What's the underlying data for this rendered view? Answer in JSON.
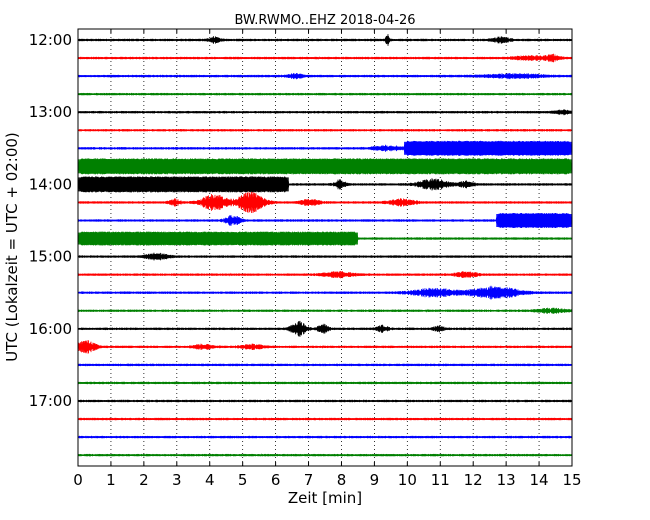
{
  "chart_data": {
    "type": "line",
    "title": "BW.RWMO..EHZ 2018-04-26",
    "xlabel": "Zeit  [min]",
    "ylabel": "UTC (Lokalzeit = UTC + 02:00)",
    "xlim": [
      0,
      15
    ],
    "x_ticks": [
      "0",
      "1",
      "2",
      "3",
      "4",
      "5",
      "6",
      "7",
      "8",
      "9",
      "10",
      "11",
      "12",
      "13",
      "14",
      "15"
    ],
    "y_tick_labels": [
      "12:00",
      "13:00",
      "14:00",
      "15:00",
      "16:00",
      "17:00"
    ],
    "grid": "vertical-dotted",
    "trace_colors": [
      "#000000",
      "#ff0000",
      "#0000ff",
      "#008000"
    ],
    "traces": [
      {
        "start": "12:00",
        "color": "#000000",
        "events": [
          {
            "x": 4.0,
            "w": 0.3,
            "amp": 3
          },
          {
            "x": 9.35,
            "w": 0.1,
            "amp": 5
          },
          {
            "x": 12.6,
            "w": 0.5,
            "amp": 2.5
          }
        ]
      },
      {
        "start": "12:15",
        "color": "#ff0000",
        "events": [
          {
            "x": 13.3,
            "w": 0.8,
            "amp": 2
          },
          {
            "x": 14.2,
            "w": 0.4,
            "amp": 3
          }
        ]
      },
      {
        "start": "12:30",
        "color": "#0000ff",
        "events": [
          {
            "x": 6.4,
            "w": 0.4,
            "amp": 2
          },
          {
            "x": 12.5,
            "w": 1.5,
            "amp": 2
          }
        ]
      },
      {
        "start": "12:45",
        "color": "#008000",
        "events": []
      },
      {
        "start": "13:00",
        "color": "#000000",
        "events": [
          {
            "x": 14.5,
            "w": 0.4,
            "amp": 2
          }
        ]
      },
      {
        "start": "13:15",
        "color": "#ff0000",
        "events": []
      },
      {
        "start": "13:30",
        "color": "#0000ff",
        "events": [
          {
            "x": 9.0,
            "w": 0.8,
            "amp": 2.5
          },
          {
            "x": 9.9,
            "x2": 15,
            "fill": 15
          }
        ]
      },
      {
        "start": "13:45",
        "color": "#008000",
        "events": [
          {
            "x": 0,
            "x2": 15,
            "fill": 16
          }
        ]
      },
      {
        "start": "14:00",
        "color": "#000000",
        "events": [
          {
            "x": 0,
            "x2": 6.4,
            "fill": 16
          },
          {
            "x": 7.8,
            "w": 0.3,
            "amp": 4
          },
          {
            "x": 10.4,
            "w": 0.8,
            "amp": 5
          },
          {
            "x": 11.6,
            "w": 0.4,
            "amp": 3
          }
        ]
      },
      {
        "start": "14:15",
        "color": "#ff0000",
        "events": [
          {
            "x": 2.8,
            "w": 0.3,
            "amp": 3
          },
          {
            "x": 3.8,
            "w": 0.7,
            "amp": 8
          },
          {
            "x": 4.9,
            "w": 0.7,
            "amp": 10
          },
          {
            "x": 6.8,
            "w": 0.5,
            "amp": 3
          },
          {
            "x": 9.5,
            "w": 0.7,
            "amp": 3
          }
        ]
      },
      {
        "start": "14:30",
        "color": "#0000ff",
        "events": [
          {
            "x": 4.5,
            "w": 0.4,
            "amp": 5
          },
          {
            "x": 12.7,
            "x2": 15,
            "fill": 15
          }
        ]
      },
      {
        "start": "14:45",
        "color": "#008000",
        "events": [
          {
            "x": 0,
            "x2": 8.5,
            "fill": 14
          }
        ]
      },
      {
        "start": "15:00",
        "color": "#000000",
        "events": [
          {
            "x": 2.1,
            "w": 0.6,
            "amp": 3
          }
        ]
      },
      {
        "start": "15:15",
        "color": "#ff0000",
        "events": [
          {
            "x": 7.5,
            "w": 0.8,
            "amp": 2.5
          },
          {
            "x": 11.5,
            "w": 0.6,
            "amp": 2.5
          }
        ]
      },
      {
        "start": "15:30",
        "color": "#0000ff",
        "events": [
          {
            "x": 10.2,
            "w": 1.2,
            "amp": 4
          },
          {
            "x": 12.0,
            "w": 1.3,
            "amp": 6
          }
        ]
      },
      {
        "start": "15:45",
        "color": "#008000",
        "events": [
          {
            "x": 14.0,
            "w": 0.8,
            "amp": 2
          }
        ]
      },
      {
        "start": "16:00",
        "color": "#000000",
        "events": [
          {
            "x": 6.5,
            "w": 0.4,
            "amp": 7
          },
          {
            "x": 7.3,
            "w": 0.3,
            "amp": 4
          },
          {
            "x": 9.1,
            "w": 0.3,
            "amp": 3
          },
          {
            "x": 10.8,
            "w": 0.3,
            "amp": 2.5
          }
        ]
      },
      {
        "start": "16:15",
        "color": "#ff0000",
        "events": [
          {
            "x": 0.0,
            "w": 0.5,
            "amp": 6
          },
          {
            "x": 3.5,
            "w": 0.6,
            "amp": 2
          },
          {
            "x": 5.0,
            "w": 0.6,
            "amp": 2
          }
        ]
      },
      {
        "start": "16:30",
        "color": "#0000ff",
        "events": []
      },
      {
        "start": "16:45",
        "color": "#008000",
        "events": []
      },
      {
        "start": "17:00",
        "color": "#000000",
        "events": []
      },
      {
        "start": "17:15",
        "color": "#ff0000",
        "events": []
      },
      {
        "start": "17:30",
        "color": "#0000ff",
        "events": []
      },
      {
        "start": "17:45",
        "color": "#008000",
        "events": []
      }
    ]
  }
}
